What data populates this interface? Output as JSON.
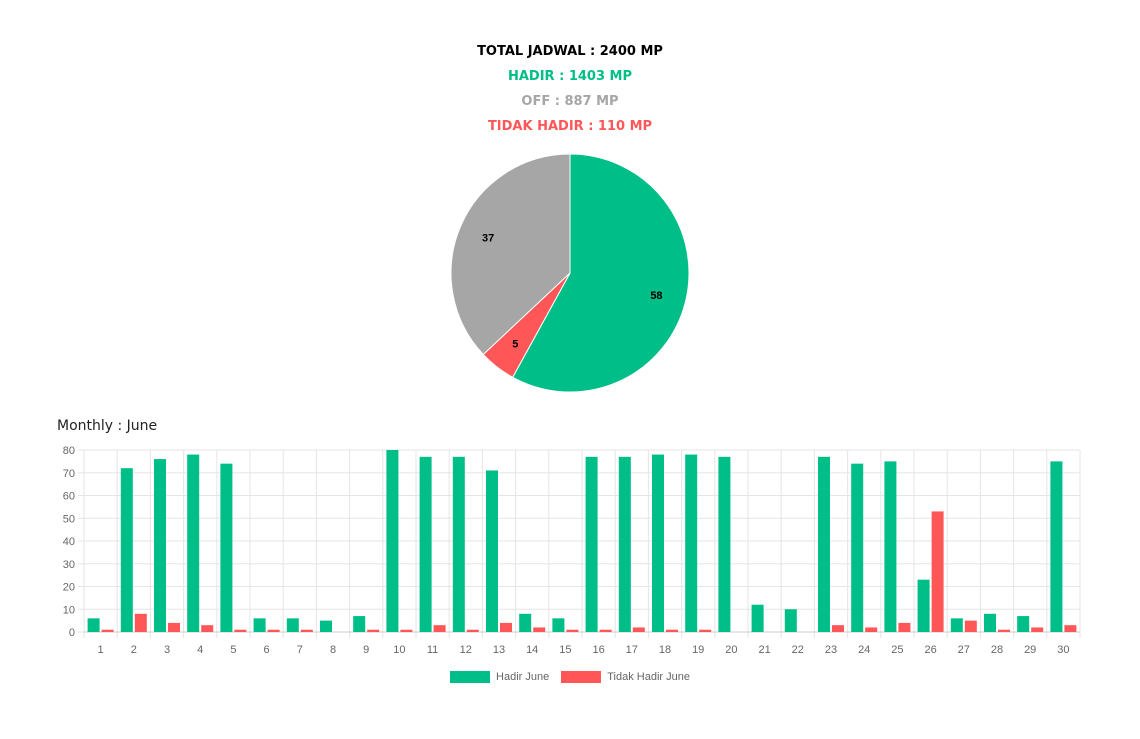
{
  "summary": {
    "total": "TOTAL JADWAL : 2400 MP",
    "hadir": "HADIR : 1403 MP",
    "off": "OFF : 887 MP",
    "tidak_hadir": "TIDAK HADIR : 110 MP"
  },
  "colors": {
    "hadir": "#00BE87",
    "off": "#A6A6A6",
    "tidak_hadir": "#FF5757",
    "grid": "#E5E5E5",
    "axis_text": "#666666"
  },
  "monthly_title": "Monthly : June",
  "chart_data": [
    {
      "type": "pie",
      "slices": [
        {
          "key": "hadir",
          "value": 58,
          "label": "58"
        },
        {
          "key": "tidak_hadir",
          "value": 5,
          "label": "5"
        },
        {
          "key": "off",
          "value": 37,
          "label": "37"
        }
      ]
    },
    {
      "type": "bar",
      "categories": [
        "1",
        "2",
        "3",
        "4",
        "5",
        "6",
        "7",
        "8",
        "9",
        "10",
        "11",
        "12",
        "13",
        "14",
        "15",
        "16",
        "17",
        "18",
        "19",
        "20",
        "21",
        "22",
        "23",
        "24",
        "25",
        "26",
        "27",
        "28",
        "29",
        "30"
      ],
      "series": [
        {
          "name": "Hadir June",
          "color_key": "hadir",
          "values": [
            6,
            72,
            76,
            78,
            74,
            6,
            6,
            5,
            7,
            80,
            77,
            77,
            71,
            8,
            6,
            77,
            77,
            78,
            78,
            77,
            12,
            10,
            77,
            74,
            75,
            23,
            6,
            8,
            7,
            75
          ]
        },
        {
          "name": "Tidak Hadir June",
          "color_key": "tidak_hadir",
          "values": [
            1,
            8,
            4,
            3,
            1,
            1,
            1,
            0,
            1,
            1,
            3,
            1,
            4,
            2,
            1,
            1,
            2,
            1,
            1,
            0,
            0,
            0,
            3,
            2,
            4,
            53,
            5,
            1,
            2,
            3
          ]
        }
      ],
      "ylim": [
        0,
        80
      ],
      "yticks": [
        0,
        10,
        20,
        30,
        40,
        50,
        60,
        70,
        80
      ],
      "grid": true,
      "legend": "bottom"
    }
  ]
}
